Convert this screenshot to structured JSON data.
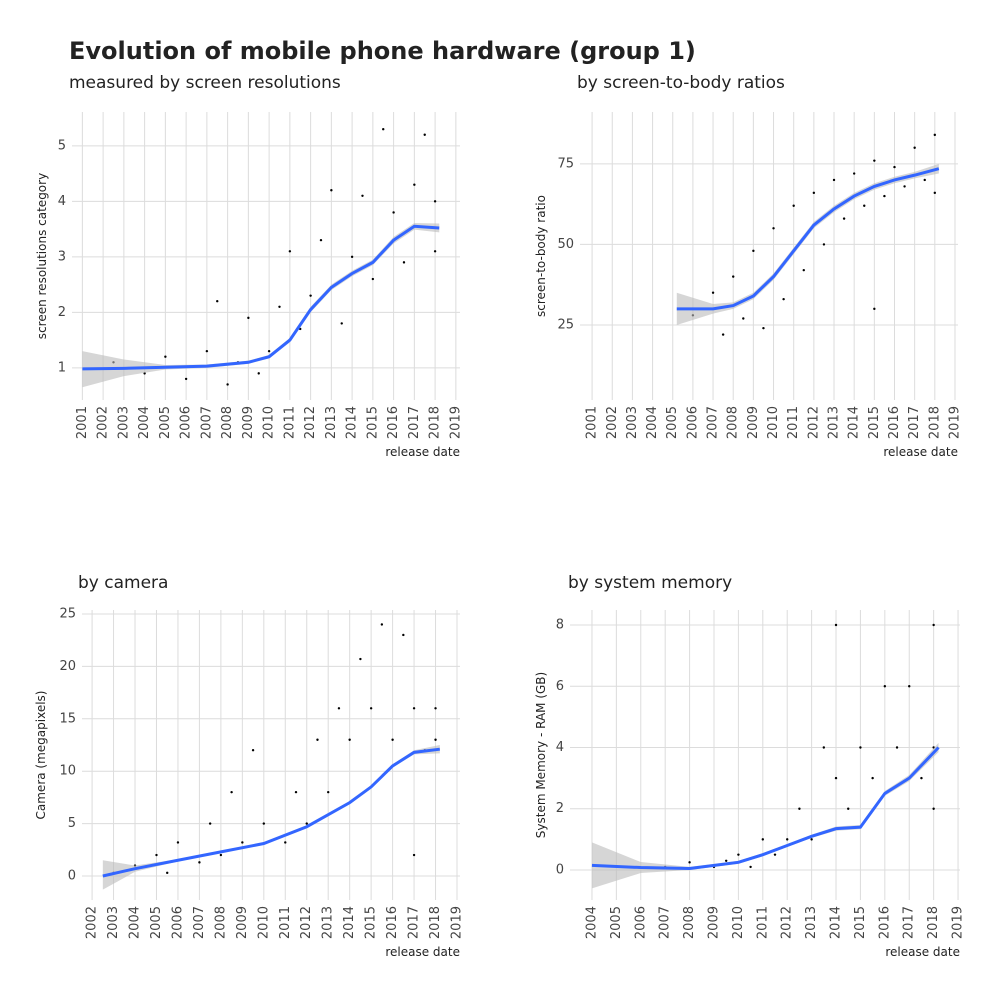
{
  "title": "Evolution of mobile phone hardware (group 1)",
  "chart_data": [
    {
      "type": "scatter",
      "subtitle": "measured by screen resolutions",
      "x_label": "release date",
      "y_label": "screen resolutions category",
      "xlim": [
        2000.5,
        2019.2
      ],
      "ylim": [
        0.42,
        5.61
      ],
      "xticks": [
        2001,
        2002,
        2003,
        2004,
        2005,
        2006,
        2007,
        2008,
        2009,
        2010,
        2011,
        2012,
        2013,
        2014,
        2015,
        2016,
        2017,
        2018,
        2019
      ],
      "yticks": [
        1,
        2,
        3,
        4,
        5
      ],
      "grid": true,
      "points": {
        "color": "#000000",
        "x": [
          2002.5,
          2004,
          2005,
          2006,
          2007,
          2007.5,
          2008,
          2008.5,
          2009,
          2009.5,
          2010,
          2010.5,
          2011,
          2011.5,
          2012,
          2012.5,
          2013,
          2013.5,
          2014,
          2014.5,
          2015,
          2015.5,
          2016,
          2016.5,
          2017,
          2017.5,
          2018,
          2018
        ],
        "values": [
          1.1,
          0.9,
          1.2,
          0.8,
          1.3,
          2.2,
          0.7,
          1.1,
          1.9,
          0.9,
          1.3,
          2.1,
          3.1,
          1.7,
          2.3,
          3.3,
          4.2,
          1.8,
          3.0,
          4.1,
          2.6,
          5.3,
          3.8,
          2.9,
          4.3,
          5.2,
          3.1,
          4.0
        ]
      },
      "smooth": {
        "color": "#3366ff",
        "band_color": "#bbbbbb",
        "x": [
          2001,
          2003,
          2005,
          2007,
          2009,
          2010,
          2011,
          2012,
          2013,
          2014,
          2015,
          2016,
          2017,
          2018.2
        ],
        "values": [
          0.98,
          0.99,
          1.01,
          1.03,
          1.1,
          1.2,
          1.5,
          2.05,
          2.45,
          2.7,
          2.9,
          3.3,
          3.55,
          3.52
        ],
        "lower": [
          0.65,
          0.85,
          0.97,
          1.0,
          1.07,
          1.17,
          1.46,
          2.0,
          2.4,
          2.65,
          2.85,
          3.24,
          3.49,
          3.44
        ],
        "upper": [
          1.3,
          1.15,
          1.05,
          1.06,
          1.13,
          1.23,
          1.54,
          2.1,
          2.5,
          2.75,
          2.95,
          3.36,
          3.61,
          3.6
        ]
      }
    },
    {
      "type": "scatter",
      "subtitle": "by screen-to-body ratios",
      "x_label": "release date",
      "y_label": "screen-to-body ratio",
      "xlim": [
        2000.4,
        2019.15
      ],
      "ylim": [
        1.7,
        91.1
      ],
      "xticks": [
        2001,
        2002,
        2003,
        2004,
        2005,
        2006,
        2007,
        2008,
        2009,
        2010,
        2011,
        2012,
        2013,
        2014,
        2015,
        2016,
        2017,
        2018,
        2019
      ],
      "yticks": [
        25,
        50,
        75
      ],
      "grid": true,
      "points": {
        "color": "#000000",
        "x": [
          2006,
          2007,
          2007.5,
          2008,
          2008.5,
          2009,
          2009.5,
          2010,
          2010.5,
          2011,
          2011.5,
          2012,
          2012.5,
          2013,
          2013.5,
          2014,
          2014.5,
          2015,
          2015.5,
          2016,
          2016.5,
          2017,
          2017.5,
          2018,
          2018,
          2015
        ],
        "values": [
          28,
          35,
          22,
          40,
          27,
          48,
          24,
          55,
          33,
          62,
          42,
          66,
          50,
          70,
          58,
          72,
          62,
          76,
          65,
          74,
          68,
          80,
          70,
          84,
          66,
          30
        ]
      },
      "smooth": {
        "color": "#3366ff",
        "band_color": "#bbbbbb",
        "x": [
          2005.2,
          2007,
          2008,
          2009,
          2010,
          2011,
          2012,
          2013,
          2014,
          2015,
          2016,
          2017,
          2018.2
        ],
        "values": [
          30,
          30,
          31,
          34,
          40,
          48,
          56,
          61,
          65,
          68,
          70,
          71.5,
          73.5
        ],
        "lower": [
          25,
          28.5,
          30,
          33,
          39,
          47,
          55,
          60,
          64,
          67,
          69,
          70.5,
          72
        ],
        "upper": [
          35,
          31.5,
          32,
          35,
          41,
          49,
          57,
          62,
          66,
          69,
          71,
          72.5,
          75
        ]
      }
    },
    {
      "type": "scatter",
      "subtitle": "by camera",
      "x_label": "release date",
      "y_label": "Camera (megapixels)",
      "xlim": [
        2001.53,
        2019.14
      ],
      "ylim": [
        -2.29,
        25.38
      ],
      "xticks": [
        2002,
        2003,
        2004,
        2005,
        2006,
        2007,
        2008,
        2009,
        2010,
        2011,
        2012,
        2013,
        2014,
        2015,
        2016,
        2017,
        2018,
        2019
      ],
      "yticks": [
        0,
        5,
        10,
        15,
        20,
        25
      ],
      "grid": true,
      "points": {
        "color": "#000000",
        "x": [
          2003,
          2004,
          2005,
          2005.5,
          2006,
          2007,
          2007.5,
          2008,
          2008.5,
          2009,
          2009.5,
          2010,
          2011,
          2011.5,
          2012,
          2012.5,
          2013,
          2013.5,
          2014,
          2014.5,
          2015,
          2015.5,
          2016,
          2016.5,
          2017,
          2017.5,
          2018,
          2018,
          2017
        ],
        "values": [
          0.3,
          1,
          2,
          0.3,
          3.2,
          1.3,
          5,
          2,
          8,
          3.2,
          12,
          5,
          3.2,
          8,
          5,
          13,
          8,
          16,
          13,
          20.7,
          16,
          24,
          13,
          23,
          16,
          12,
          16,
          13,
          2
        ]
      },
      "smooth": {
        "color": "#3366ff",
        "band_color": "#bbbbbb",
        "x": [
          2002.5,
          2004,
          2006,
          2008,
          2010,
          2012,
          2014,
          2015,
          2016,
          2017,
          2018.2
        ],
        "values": [
          0,
          0.7,
          1.5,
          2.3,
          3.1,
          4.7,
          7,
          8.5,
          10.5,
          11.8,
          12.1
        ],
        "lower": [
          -1.3,
          0.4,
          1.4,
          2.2,
          3.0,
          4.6,
          6.85,
          8.35,
          10.35,
          11.6,
          11.7
        ],
        "upper": [
          1.5,
          1.0,
          1.6,
          2.4,
          3.2,
          4.8,
          7.15,
          8.65,
          10.65,
          12.0,
          12.5
        ]
      }
    },
    {
      "type": "scatter",
      "subtitle": "by system memory",
      "x_label": "release date",
      "y_label": "System Memory - RAM (GB)",
      "xlim": [
        2003.1,
        2019.08
      ],
      "ylim": [
        -0.98,
        8.49
      ],
      "xticks": [
        2004,
        2005,
        2006,
        2007,
        2008,
        2009,
        2010,
        2011,
        2012,
        2013,
        2014,
        2015,
        2016,
        2017,
        2018,
        2019
      ],
      "yticks": [
        0,
        2,
        4,
        6,
        8
      ],
      "grid": true,
      "points": {
        "color": "#000000",
        "x": [
          2007,
          2008,
          2009,
          2009.5,
          2010,
          2010.5,
          2011,
          2011.5,
          2012,
          2012.5,
          2013,
          2013.5,
          2014,
          2014.5,
          2015,
          2015.5,
          2016,
          2016.5,
          2017,
          2017.5,
          2018,
          2018,
          2018,
          2014
        ],
        "values": [
          0.1,
          0.25,
          0.1,
          0.3,
          0.5,
          0.1,
          1,
          0.5,
          1,
          2,
          1,
          4,
          3,
          2,
          4,
          3,
          6,
          4,
          6,
          3,
          8,
          4,
          2,
          8
        ]
      },
      "smooth": {
        "color": "#3366ff",
        "band_color": "#bbbbbb",
        "x": [
          2004,
          2006,
          2008,
          2010,
          2011,
          2012,
          2013,
          2014,
          2015,
          2016,
          2017,
          2018.2
        ],
        "values": [
          0.15,
          0.08,
          0.05,
          0.25,
          0.5,
          0.8,
          1.1,
          1.35,
          1.4,
          2.5,
          3.0,
          4.0
        ],
        "lower": [
          -0.6,
          -0.1,
          0.0,
          0.2,
          0.45,
          0.75,
          1.05,
          1.28,
          1.33,
          2.42,
          2.9,
          3.85
        ],
        "upper": [
          0.9,
          0.26,
          0.1,
          0.3,
          0.55,
          0.85,
          1.15,
          1.42,
          1.47,
          2.58,
          3.1,
          4.15
        ]
      }
    }
  ]
}
